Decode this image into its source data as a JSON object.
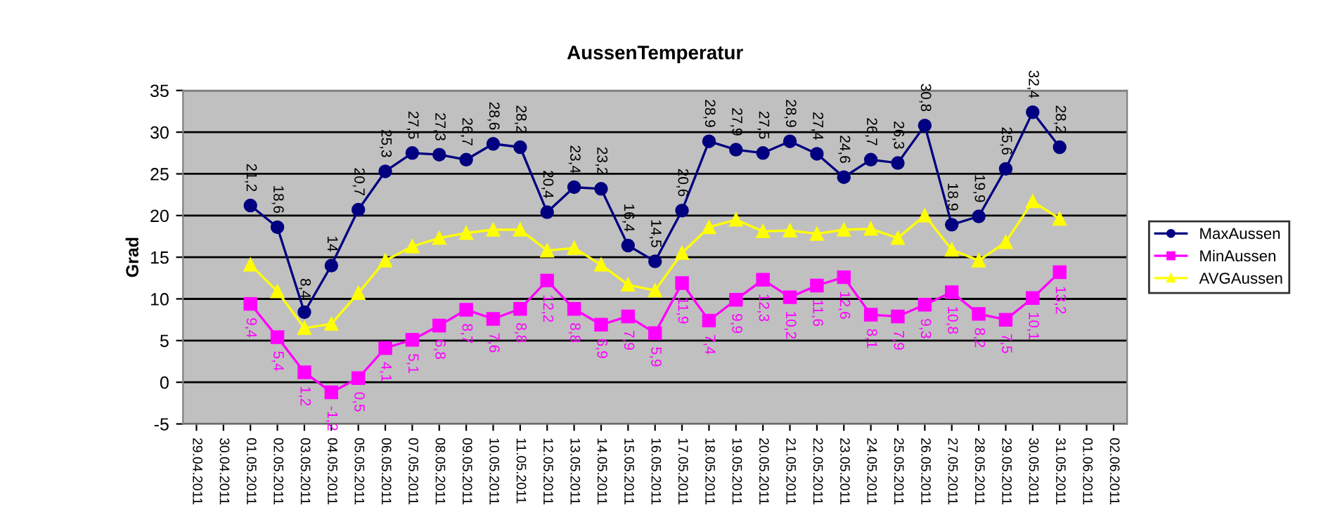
{
  "chart_data": {
    "type": "line",
    "title": "AussenTemperatur",
    "ylabel": "Grad",
    "categories": [
      "29.04.2011",
      "30.04.2011",
      "01.05.2011",
      "02.05.2011",
      "03.05.2011",
      "04.05.2011",
      "05.05.2011",
      "06.05.2011",
      "07.05.2011",
      "08.05.2011",
      "09.05.2011",
      "10.05.2011",
      "11.05.2011",
      "12.05.2011",
      "13.05.2011",
      "14.05.2011",
      "15.05.2011",
      "16.05.2011",
      "17.05.2011",
      "18.05.2011",
      "19.05.2011",
      "20.05.2011",
      "21.05.2011",
      "22.05.2011",
      "23.05.2011",
      "24.05.2011",
      "25.05.2011",
      "26.05.2011",
      "27.05.2011",
      "28.05.2011",
      "29.05.2011",
      "30.05.2011",
      "31.05.2011",
      "01.06.2011",
      "02.06.2011"
    ],
    "series": [
      {
        "name": "MaxAussen",
        "color": "#000080",
        "marker": "circle",
        "values": [
          null,
          null,
          21.2,
          18.6,
          8.4,
          14,
          20.7,
          25.3,
          27.5,
          27.3,
          26.7,
          28.6,
          28.2,
          20.4,
          23.4,
          23.2,
          16.4,
          14.5,
          20.6,
          28.9,
          27.9,
          27.5,
          28.9,
          27.4,
          24.6,
          26.7,
          26.3,
          30.8,
          18.9,
          19.9,
          25.6,
          32.4,
          28.2,
          null,
          null
        ],
        "value_labels": [
          null,
          null,
          "21,2",
          "18,6",
          "8,4",
          "14",
          "20,7",
          "25,3",
          "27,5",
          "27,3",
          "26,7",
          "28,6",
          "28,2",
          "20,4",
          "23,4",
          "23,2",
          "16,4",
          "14,5",
          "20,6",
          "28,9",
          "27,9",
          "27,5",
          "28,9",
          "27,4",
          "24,6",
          "26,7",
          "26,3",
          "30,8",
          "18,9",
          "19,9",
          "25,6",
          "32,4",
          "28,2",
          null,
          null
        ]
      },
      {
        "name": "MinAussen",
        "color": "#ff00ff",
        "marker": "square",
        "values": [
          null,
          null,
          9.4,
          5.4,
          1.2,
          -1.2,
          0.5,
          4.1,
          5.1,
          6.8,
          8.7,
          7.6,
          8.8,
          12.2,
          8.8,
          6.9,
          7.9,
          5.9,
          11.9,
          7.4,
          9.9,
          12.3,
          10.2,
          11.6,
          12.6,
          8.1,
          7.9,
          9.3,
          10.8,
          8.2,
          7.5,
          10.1,
          13.2,
          null,
          null
        ],
        "value_labels": [
          null,
          null,
          "9,4",
          "5,4",
          "1,2",
          "-1,2",
          "0,5",
          "4,1",
          "5,1",
          "6,8",
          "8,7",
          "7,6",
          "8,8",
          "12,2",
          "8,8",
          "6,9",
          "7,9",
          "5,9",
          "11,9",
          "7,4",
          "9,9",
          "12,3",
          "10,2",
          "11,6",
          "12,6",
          "8,1",
          "7,9",
          "9,3",
          "10,8",
          "8,2",
          "7,5",
          "10,1",
          "13,2",
          null,
          null
        ]
      },
      {
        "name": "AVGAussen",
        "color": "#ffff00",
        "marker": "triangle",
        "values": [
          null,
          null,
          14.1,
          10.9,
          6.5,
          7.0,
          10.7,
          14.6,
          16.3,
          17.3,
          17.9,
          18.3,
          18.3,
          15.8,
          16.1,
          14.1,
          11.7,
          11.0,
          15.5,
          18.6,
          19.5,
          18.1,
          18.2,
          17.8,
          18.3,
          18.4,
          17.3,
          20.0,
          15.9,
          14.6,
          16.8,
          21.7,
          19.6,
          null,
          null
        ]
      }
    ],
    "ylim": [
      -5,
      35
    ],
    "yticks": [
      -5,
      0,
      5,
      10,
      15,
      20,
      25,
      30,
      35
    ],
    "grid": "y",
    "legend": "right"
  }
}
